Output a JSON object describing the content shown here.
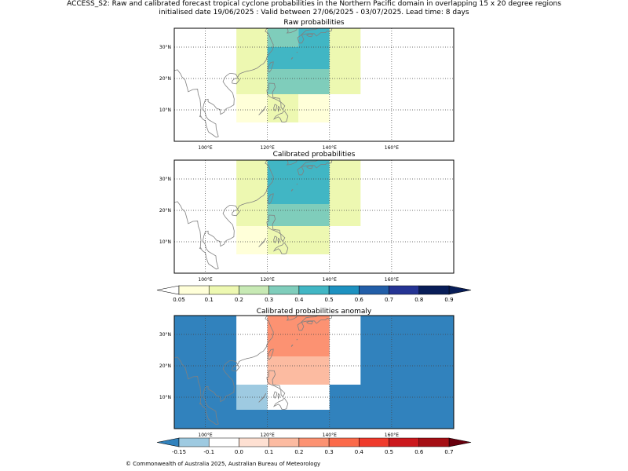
{
  "figure": {
    "title_line1": "ACCESS_S2: Raw and calibrated forecast tropical cyclone probabilities in the Northern Pacific domain in overlapping 15 x 20 degree regions",
    "title_line2": "initialised date 19/06/2025 :  Valid between 27/06/2025 - 03/07/2025. Lead time: 8 days",
    "copyright": "© Commonwealth of Australia 2025, Australian Bureau of Meteorology"
  },
  "map": {
    "lon_range": [
      90,
      180
    ],
    "lat_range": [
      0,
      36
    ],
    "lon_ticks": [
      100,
      120,
      140,
      160
    ],
    "lon_tick_labels": [
      "100°E",
      "120°E",
      "140°E",
      "160°E"
    ],
    "lat_ticks": [
      10,
      20,
      30
    ],
    "lat_tick_labels": [
      "10°N",
      "20°N",
      "30°N"
    ],
    "gridlines": true,
    "coastline_color": "#808080"
  },
  "panels": [
    {
      "title": "Raw probabilities",
      "cells": [
        {
          "lon": [
            110,
            120
          ],
          "lat": [
            15,
            36
          ],
          "color": "#edf8b1"
        },
        {
          "lon": [
            120,
            130
          ],
          "lat": [
            30,
            36
          ],
          "color": "#7fcdbb"
        },
        {
          "lon": [
            130,
            140
          ],
          "lat": [
            30,
            36
          ],
          "color": "#41b6c4"
        },
        {
          "lon": [
            120,
            140
          ],
          "lat": [
            23,
            30
          ],
          "color": "#41b6c4"
        },
        {
          "lon": [
            120,
            140
          ],
          "lat": [
            15,
            23
          ],
          "color": "#7fcdbb"
        },
        {
          "lon": [
            140,
            150
          ],
          "lat": [
            15,
            36
          ],
          "color": "#edf8b1"
        },
        {
          "lon": [
            110,
            120
          ],
          "lat": [
            6,
            15
          ],
          "color": "#ffffd9"
        },
        {
          "lon": [
            120,
            130
          ],
          "lat": [
            6,
            15
          ],
          "color": "#edf8b1"
        },
        {
          "lon": [
            130,
            140
          ],
          "lat": [
            6,
            15
          ],
          "color": "#ffffd9"
        }
      ]
    },
    {
      "title": "Calibrated probabilities",
      "cells": [
        {
          "lon": [
            110,
            120
          ],
          "lat": [
            15,
            36
          ],
          "color": "#edf8b1"
        },
        {
          "lon": [
            120,
            140
          ],
          "lat": [
            22,
            36
          ],
          "color": "#41b6c4"
        },
        {
          "lon": [
            120,
            140
          ],
          "lat": [
            15,
            22
          ],
          "color": "#7fcdbb"
        },
        {
          "lon": [
            140,
            150
          ],
          "lat": [
            15,
            36
          ],
          "color": "#edf8b1"
        },
        {
          "lon": [
            110,
            120
          ],
          "lat": [
            6,
            15
          ],
          "color": "#ffffd9"
        },
        {
          "lon": [
            120,
            140
          ],
          "lat": [
            6,
            15
          ],
          "color": "#edf8b1"
        }
      ]
    },
    {
      "title": "Calibrated probabilities anomaly",
      "background": "#3182bd",
      "cells": [
        {
          "lon": [
            110,
            120
          ],
          "lat": [
            14,
            36
          ],
          "color": "#ffffff"
        },
        {
          "lon": [
            120,
            140
          ],
          "lat": [
            23,
            36
          ],
          "color": "#fc9272"
        },
        {
          "lon": [
            120,
            140
          ],
          "lat": [
            14,
            23
          ],
          "color": "#fcbba1"
        },
        {
          "lon": [
            140,
            150
          ],
          "lat": [
            14,
            36
          ],
          "color": "#ffffff"
        },
        {
          "lon": [
            110,
            120
          ],
          "lat": [
            6,
            14
          ],
          "color": "#9ecae1"
        },
        {
          "lon": [
            120,
            140
          ],
          "lat": [
            6,
            14
          ],
          "color": "#ffffff"
        }
      ]
    }
  ],
  "colorbars": [
    {
      "name": "probability",
      "labels": [
        "0.05",
        "0.1",
        "0.2",
        "0.3",
        "0.4",
        "0.5",
        "0.6",
        "0.7",
        "0.8",
        "0.9"
      ],
      "colors": [
        "#ffffd9",
        "#edf8b1",
        "#c7e9b4",
        "#7fcdbb",
        "#41b6c4",
        "#1d91c0",
        "#225ea8",
        "#253494",
        "#081d58"
      ],
      "under_color": "#ffffff",
      "over_color": "#081d58"
    },
    {
      "name": "anomaly",
      "labels": [
        "-0.15",
        "-0.1",
        "0.0",
        "0.1",
        "0.2",
        "0.3",
        "0.4",
        "0.5",
        "0.6",
        "0.7"
      ],
      "colors": [
        "#9ecae1",
        "#ffffff",
        "#fee0d2",
        "#fcbba1",
        "#fc9272",
        "#fb6a4a",
        "#ef3b2c",
        "#cb181d",
        "#a50f15"
      ],
      "under_color": "#3182bd",
      "over_color": "#67000d"
    }
  ]
}
